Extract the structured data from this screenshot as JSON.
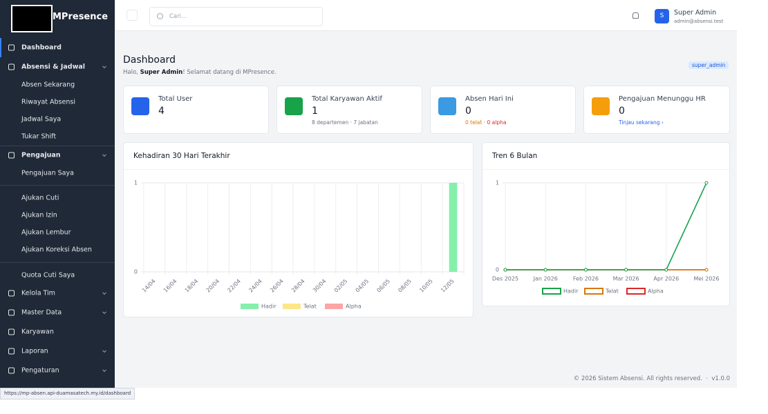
{
  "sidebar": {
    "brand": "MPresence",
    "menu": {
      "dashboard": "Dashboard",
      "absensi": "Absensi & Jadwal",
      "absen_sekarang": "Absen Sekarang",
      "riwayat": "Riwayat Absensi",
      "jadwal": "Jadwal Saya",
      "tukar": "Tukar Shift",
      "pengajuan": "Pengajuan",
      "pengajuan_saya": "Pengajuan Saya",
      "cuti": "Ajukan Cuti",
      "izin": "Ajukan Izin",
      "lembur": "Ajukan Lembur",
      "koreksi": "Ajukan Koreksi Absen",
      "quota": "Quota Cuti Saya",
      "kelola": "Kelola Tim",
      "master": "Master Data",
      "karyawan": "Karyawan",
      "laporan": "Laporan",
      "pengaturan": "Pengaturan"
    }
  },
  "header": {
    "search_placeholder": "Cari...",
    "avatar": "S",
    "user_name": "Super Admin",
    "user_email": "admin@absensi.test"
  },
  "page": {
    "title": "Dashboard",
    "greeting_pre": "Halo, ",
    "greeting_name": "Super Admin",
    "greeting_post": "! Selamat datang di MPresence.",
    "role_badge": "super_admin"
  },
  "cards": [
    {
      "label": "Total User",
      "value": 4
    },
    {
      "label": "Total Karyawan Aktif",
      "value": 1,
      "sub": "8 departemen · 7 jabatan"
    },
    {
      "label": "Absen Hari Ini",
      "value": 0,
      "sub_late": "0 telat",
      "sub_sep": "·",
      "sub_alpha": "0 alpha"
    },
    {
      "label": "Pengajuan Menunggu HR",
      "value": 0,
      "link": "Tinjau sekarang"
    }
  ],
  "chart_data": [
    {
      "type": "bar",
      "title": "Kehadiran 30 Hari Terakhir",
      "categories": [
        "14/04",
        "16/04",
        "18/04",
        "20/04",
        "22/04",
        "24/04",
        "26/04",
        "28/04",
        "30/04",
        "02/05",
        "04/05",
        "06/05",
        "08/05",
        "10/05",
        "12/05"
      ],
      "series": [
        {
          "name": "Hadir",
          "color": "#86efac",
          "values": [
            0,
            0,
            0,
            0,
            0,
            0,
            0,
            0,
            0,
            0,
            0,
            0,
            0,
            0,
            1
          ]
        },
        {
          "name": "Telat",
          "color": "#fde68a",
          "values": [
            0,
            0,
            0,
            0,
            0,
            0,
            0,
            0,
            0,
            0,
            0,
            0,
            0,
            0,
            0
          ]
        },
        {
          "name": "Alpha",
          "color": "#fca5a5",
          "values": [
            0,
            0,
            0,
            0,
            0,
            0,
            0,
            0,
            0,
            0,
            0,
            0,
            0,
            0,
            0
          ]
        }
      ],
      "ylim": [
        0,
        1
      ],
      "yticks": [
        0,
        1
      ],
      "grid": true
    },
    {
      "type": "line",
      "title": "Tren 6 Bulan",
      "categories": [
        "Des 2025",
        "Jan 2026",
        "Feb 2026",
        "Mar 2026",
        "Apr 2026",
        "Mei 2026"
      ],
      "series": [
        {
          "name": "Hadir",
          "color": "#16a34a",
          "values": [
            0,
            0,
            0,
            0,
            0,
            1
          ]
        },
        {
          "name": "Telat",
          "color": "#d97706",
          "values": [
            0,
            0,
            0,
            0,
            0,
            0
          ]
        },
        {
          "name": "Alpha",
          "color": "#dc2626",
          "values": [
            0,
            0,
            0,
            0,
            0,
            0
          ]
        }
      ],
      "ylim": [
        0,
        1
      ],
      "yticks": [
        0,
        1
      ],
      "grid": true
    }
  ],
  "footer": {
    "copyright": "© 2026 Sistem Absensi. All rights reserved.",
    "sep": "·",
    "version": "v1.0.0"
  },
  "status_url": "https://mp-absen.api-duamasatech.my.id/dashboard"
}
